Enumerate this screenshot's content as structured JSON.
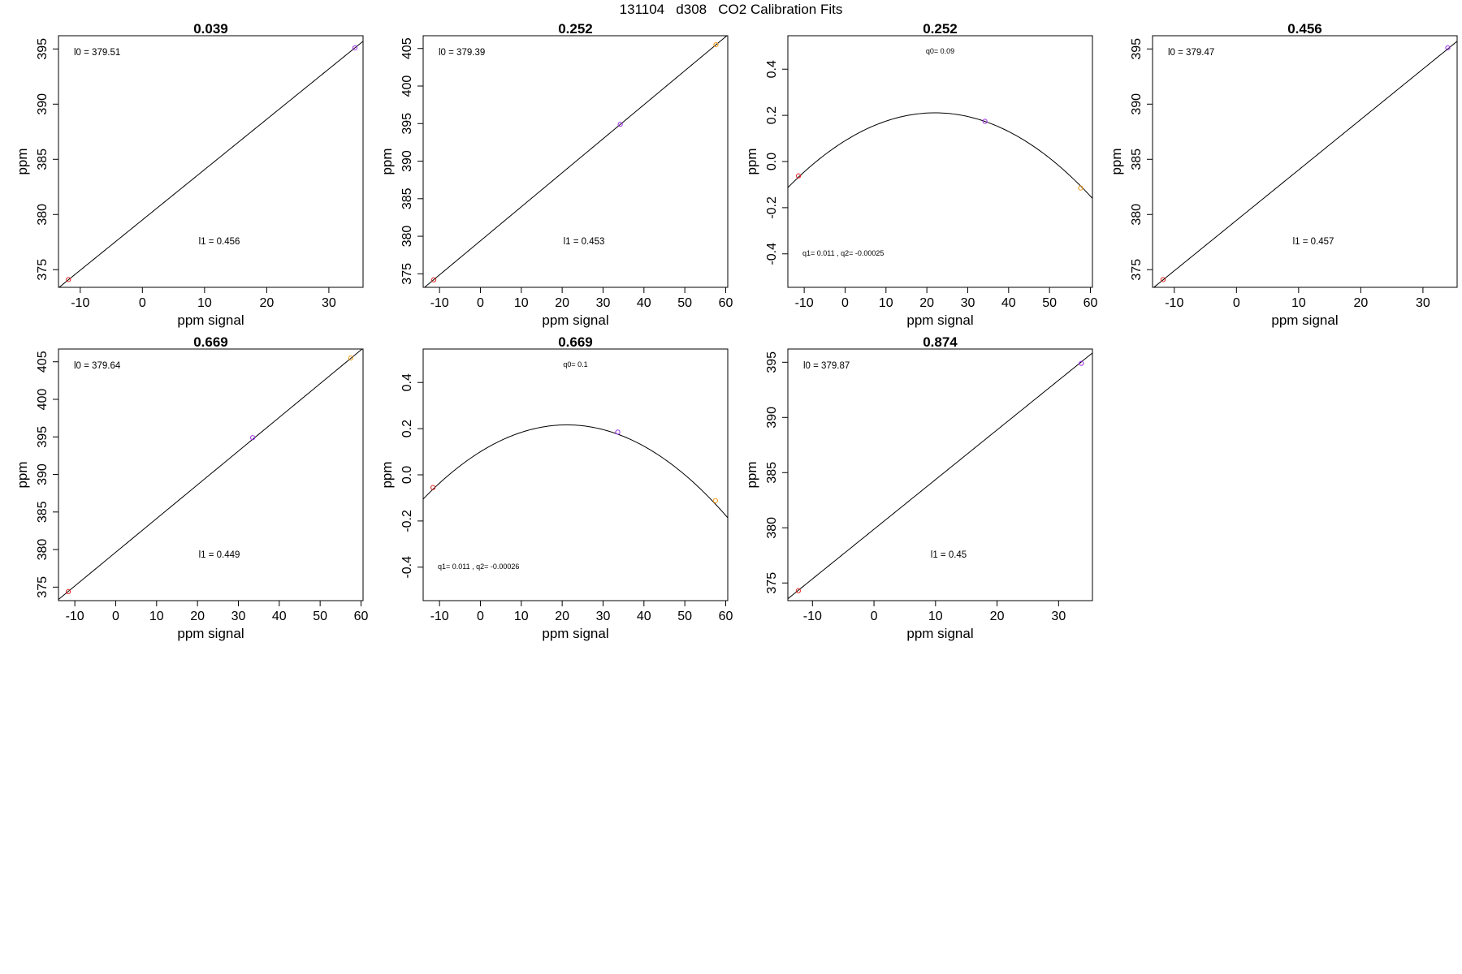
{
  "page": {
    "title": "131104   d308   CO2 Calibration Fits"
  },
  "chart_data": [
    {
      "type": "scatter",
      "title": "0.039",
      "xlabel": "ppm signal",
      "ylabel": "ppm",
      "xlim": [
        -13.5,
        35.5
      ],
      "ylim": [
        373.4,
        396.2
      ],
      "x_ticks": [
        -10,
        0,
        10,
        20,
        30
      ],
      "y_ticks": [
        375,
        380,
        385,
        390,
        395
      ],
      "fit": {
        "kind": "linear",
        "l0": 379.51,
        "l1": 0.456
      },
      "annotations": [
        {
          "text": "l0 =  379.51"
        },
        {
          "text": "l1 =  0.456"
        }
      ],
      "points": [
        {
          "x": -11.9,
          "y": 374.1,
          "color": "#e0201c"
        },
        {
          "x": 34.2,
          "y": 395.1,
          "color": "#9b30e8"
        }
      ]
    },
    {
      "type": "scatter",
      "title": "0.252",
      "xlabel": "ppm signal",
      "ylabel": "ppm",
      "xlim": [
        -14,
        60.5
      ],
      "ylim": [
        373.2,
        406.7
      ],
      "x_ticks": [
        -10,
        0,
        10,
        20,
        30,
        40,
        50,
        60
      ],
      "y_ticks": [
        375,
        380,
        385,
        390,
        395,
        400,
        405
      ],
      "fit": {
        "kind": "linear",
        "l0": 379.39,
        "l1": 0.453
      },
      "annotations": [
        {
          "text": "l0 =  379.39"
        },
        {
          "text": "l1 =  0.453"
        }
      ],
      "points": [
        {
          "x": -11.4,
          "y": 374.2,
          "color": "#e0201c"
        },
        {
          "x": 34.2,
          "y": 394.9,
          "color": "#9b30e8"
        },
        {
          "x": 57.6,
          "y": 405.5,
          "color": "#f29a16"
        }
      ]
    },
    {
      "type": "scatter",
      "title": "0.252",
      "xlabel": "ppm signal",
      "ylabel": "ppm",
      "xlim": [
        -14,
        60.5
      ],
      "ylim": [
        -0.545,
        0.545
      ],
      "x_ticks": [
        -10,
        0,
        10,
        20,
        30,
        40,
        50,
        60
      ],
      "y_ticks": [
        -0.4,
        -0.2,
        0.0,
        0.2,
        0.4
      ],
      "y_tick_labels": [
        "-0.4",
        "-0.2",
        "0.0",
        "0.2",
        "0.4"
      ],
      "fit": {
        "kind": "quadratic",
        "q0": 0.09,
        "q1": 0.011,
        "q2": -0.00025
      },
      "annotations": [
        {
          "text": "q0= 0.09"
        },
        {
          "text": "q1= 0.011 , q2= -0.00025"
        }
      ],
      "points": [
        {
          "x": -11.4,
          "y": -0.062,
          "color": "#e0201c"
        },
        {
          "x": 34.2,
          "y": 0.174,
          "color": "#9b30e8"
        },
        {
          "x": 57.6,
          "y": -0.115,
          "color": "#f29a16"
        }
      ]
    },
    {
      "type": "scatter",
      "title": "0.456",
      "xlabel": "ppm signal",
      "ylabel": "ppm",
      "xlim": [
        -13.5,
        35.5
      ],
      "ylim": [
        373.4,
        396.2
      ],
      "x_ticks": [
        -10,
        0,
        10,
        20,
        30
      ],
      "y_ticks": [
        375,
        380,
        385,
        390,
        395
      ],
      "fit": {
        "kind": "linear",
        "l0": 379.47,
        "l1": 0.457
      },
      "annotations": [
        {
          "text": "l0 =  379.47"
        },
        {
          "text": "l1 =  0.457"
        }
      ],
      "points": [
        {
          "x": -11.8,
          "y": 374.1,
          "color": "#e0201c"
        },
        {
          "x": 34.0,
          "y": 395.1,
          "color": "#9b30e8"
        }
      ]
    },
    {
      "type": "scatter",
      "title": "0.669",
      "xlabel": "ppm signal",
      "ylabel": "ppm",
      "xlim": [
        -14,
        60.5
      ],
      "ylim": [
        373.2,
        406.7
      ],
      "x_ticks": [
        -10,
        0,
        10,
        20,
        30,
        40,
        50,
        60
      ],
      "y_ticks": [
        375,
        380,
        385,
        390,
        395,
        400,
        405
      ],
      "fit": {
        "kind": "linear",
        "l0": 379.64,
        "l1": 0.449
      },
      "annotations": [
        {
          "text": "l0 =  379.64"
        },
        {
          "text": "l1 =  0.449"
        }
      ],
      "points": [
        {
          "x": -11.6,
          "y": 374.4,
          "color": "#e0201c"
        },
        {
          "x": 33.5,
          "y": 394.9,
          "color": "#9b30e8"
        },
        {
          "x": 57.5,
          "y": 405.5,
          "color": "#f29a16"
        }
      ]
    },
    {
      "type": "scatter",
      "title": "0.669",
      "xlabel": "ppm signal",
      "ylabel": "ppm",
      "xlim": [
        -14,
        60.5
      ],
      "ylim": [
        -0.545,
        0.545
      ],
      "x_ticks": [
        -10,
        0,
        10,
        20,
        30,
        40,
        50,
        60
      ],
      "y_ticks": [
        -0.4,
        -0.2,
        0.0,
        0.2,
        0.4
      ],
      "y_tick_labels": [
        "-0.4",
        "-0.2",
        "0.0",
        "0.2",
        "0.4"
      ],
      "fit": {
        "kind": "quadratic",
        "q0": 0.1,
        "q1": 0.011,
        "q2": -0.00026
      },
      "annotations": [
        {
          "text": "q0= 0.1"
        },
        {
          "text": "q1= 0.011 , q2= -0.00026"
        }
      ],
      "points": [
        {
          "x": -11.6,
          "y": -0.055,
          "color": "#e0201c"
        },
        {
          "x": 33.6,
          "y": 0.185,
          "color": "#9b30e8"
        },
        {
          "x": 57.5,
          "y": -0.112,
          "color": "#f29a16"
        }
      ]
    },
    {
      "type": "scatter",
      "title": "0.874",
      "xlabel": "ppm signal",
      "ylabel": "ppm",
      "xlim": [
        -14,
        35.5
      ],
      "ylim": [
        373.4,
        396.2
      ],
      "x_ticks": [
        -10,
        0,
        10,
        20,
        30
      ],
      "y_ticks": [
        375,
        380,
        385,
        390,
        395
      ],
      "fit": {
        "kind": "linear",
        "l0": 379.87,
        "l1": 0.45
      },
      "annotations": [
        {
          "text": "l0 =  379.87"
        },
        {
          "text": "l1 =  0.45"
        }
      ],
      "points": [
        {
          "x": -12.3,
          "y": 374.3,
          "color": "#e0201c"
        },
        {
          "x": 33.7,
          "y": 394.9,
          "color": "#9b30e8"
        }
      ]
    }
  ]
}
